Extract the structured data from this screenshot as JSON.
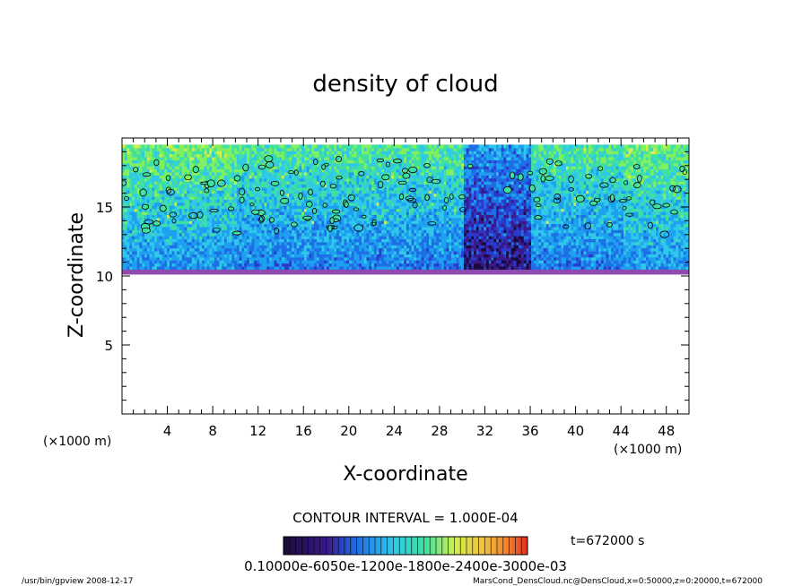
{
  "chart_data": {
    "type": "heatmap",
    "title": "density of cloud",
    "xlabel": "X-coordinate",
    "ylabel": "Z-coordinate",
    "x_unit_left": "(×1000 m)",
    "x_unit_right": "(×1000 m)",
    "xlim": [
      0,
      50
    ],
    "ylim": [
      0,
      20
    ],
    "x_ticks": [
      "4",
      "8",
      "12",
      "16",
      "20",
      "24",
      "28",
      "32",
      "36",
      "40",
      "44",
      "48"
    ],
    "y_ticks": [
      "5",
      "10",
      "15"
    ],
    "contour_interval": "CONTOUR INTERVAL = 1.000E-04",
    "time_label": "t=672000 s",
    "colorbar_labels_text": "0.10000e-6050e-1200e-1800e-2400e-3000e-03",
    "footer_left": "/usr/bin/gpview   2008-12-17",
    "footer_right": "MarsCond_DensCloud.nc@DensCloud,x=0:50000,z=0:20000,t=672000",
    "cloud_layer": {
      "z_bottom_approx": 10.5,
      "z_top_approx": 19.5,
      "gap_x_range": [
        30,
        36
      ]
    },
    "colors": {
      "colormap": [
        "#1a0a3a",
        "#3a1a8a",
        "#2a3acc",
        "#1e6ee6",
        "#1ea0f0",
        "#30c8e8",
        "#40e0a0",
        "#80f060",
        "#d0f050",
        "#f0c040",
        "#f08030",
        "#e03020"
      ],
      "edge": "#7a2aa0"
    }
  }
}
